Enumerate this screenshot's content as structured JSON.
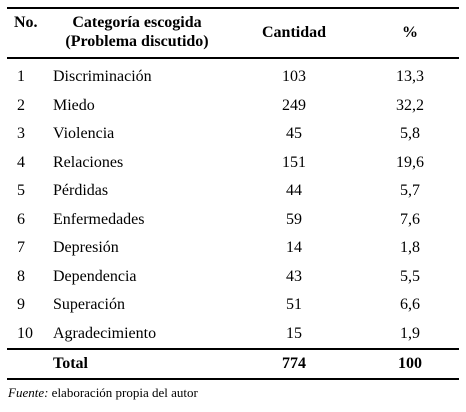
{
  "table": {
    "headers": {
      "no": "No.",
      "category_line1": "Categoría escogida",
      "category_line2": "(Problema discutido)",
      "quantity": "Cantidad",
      "percent": "%"
    },
    "rows": [
      {
        "no": "1",
        "category": "Discriminación",
        "quantity": "103",
        "percent": "13,3"
      },
      {
        "no": "2",
        "category": "Miedo",
        "quantity": "249",
        "percent": "32,2"
      },
      {
        "no": "3",
        "category": "Violencia",
        "quantity": "45",
        "percent": "5,8"
      },
      {
        "no": "4",
        "category": "Relaciones",
        "quantity": "151",
        "percent": "19,6"
      },
      {
        "no": "5",
        "category": "Pérdidas",
        "quantity": "44",
        "percent": "5,7"
      },
      {
        "no": "6",
        "category": "Enfermedades",
        "quantity": "59",
        "percent": "7,6"
      },
      {
        "no": "7",
        "category": "Depresión",
        "quantity": "14",
        "percent": "1,8"
      },
      {
        "no": "8",
        "category": "Dependencia",
        "quantity": "43",
        "percent": "5,5"
      },
      {
        "no": "9",
        "category": "Superación",
        "quantity": "51",
        "percent": "6,6"
      },
      {
        "no": "10",
        "category": "Agradecimiento",
        "quantity": "15",
        "percent": "1,9"
      }
    ],
    "total": {
      "label": "Total",
      "quantity": "774",
      "percent": "100"
    }
  },
  "source": {
    "label": "Fuente:",
    "text": " elaboración propia del autor"
  }
}
